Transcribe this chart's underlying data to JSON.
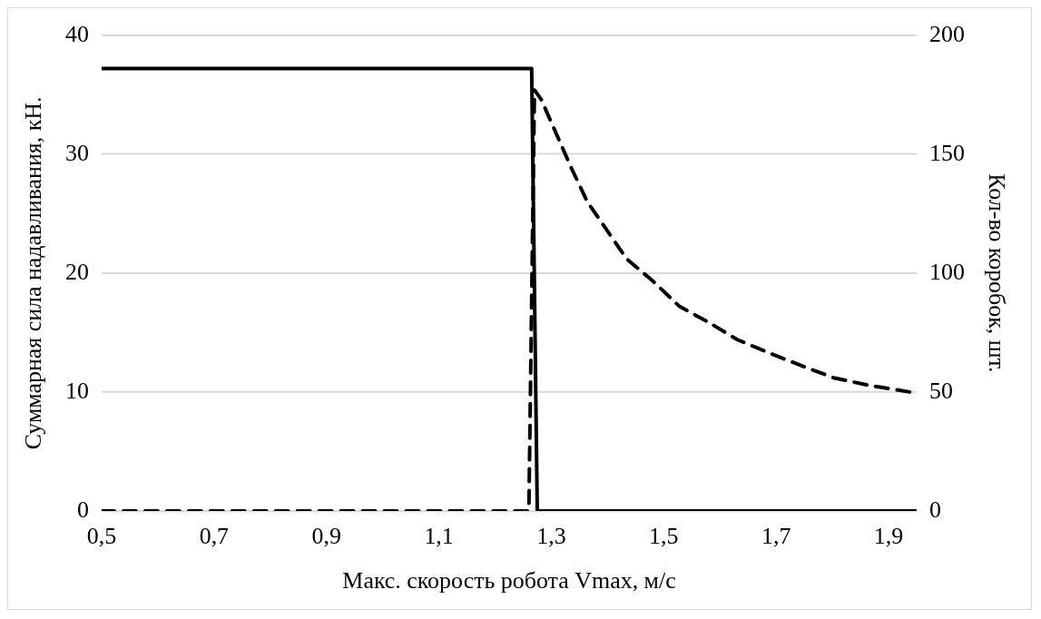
{
  "chart_data": {
    "type": "line",
    "xlabel": "Макс. скорость робота Vmax, м/с",
    "ylabel": "Суммарная сила надавливания, кН.",
    "y2label": "Кол-во коробок, шт.",
    "xlim": [
      0.5,
      1.95
    ],
    "xticks": [
      {
        "value": 0.5,
        "label": "0,5"
      },
      {
        "value": 0.7,
        "label": "0,7"
      },
      {
        "value": 0.9,
        "label": "0,9"
      },
      {
        "value": 1.1,
        "label": "1,1"
      },
      {
        "value": 1.3,
        "label": "1,3"
      },
      {
        "value": 1.5,
        "label": "1,5"
      },
      {
        "value": 1.7,
        "label": "1,7"
      },
      {
        "value": 1.9,
        "label": "1,9"
      }
    ],
    "ylim": [
      0,
      40
    ],
    "yticks": [
      0,
      10,
      20,
      30,
      40
    ],
    "y2lim": [
      0,
      200
    ],
    "y2ticks": [
      0,
      50,
      100,
      150,
      200
    ],
    "grid": "y",
    "legend": false,
    "marker": "none",
    "series": [
      {
        "color": "#000000",
        "line_style": "solid",
        "x": [
          0.5,
          1.265,
          1.275,
          1.95
        ],
        "values": [
          37.2,
          37.2,
          0,
          0
        ]
      },
      {
        "color": "#000000",
        "line_style": "dashed",
        "axis": "y2",
        "x": [
          0.5,
          1.26,
          1.27,
          1.282,
          1.31,
          1.336,
          1.364,
          1.402,
          1.434,
          1.479,
          1.528,
          1.582,
          1.631,
          1.692,
          1.746,
          1.802,
          1.861,
          1.938,
          1.95
        ],
        "values": [
          0,
          0,
          177,
          173,
          158,
          144,
          130,
          117,
          106,
          97,
          86,
          79,
          72,
          66,
          61,
          56,
          53,
          50,
          49
        ]
      }
    ]
  }
}
